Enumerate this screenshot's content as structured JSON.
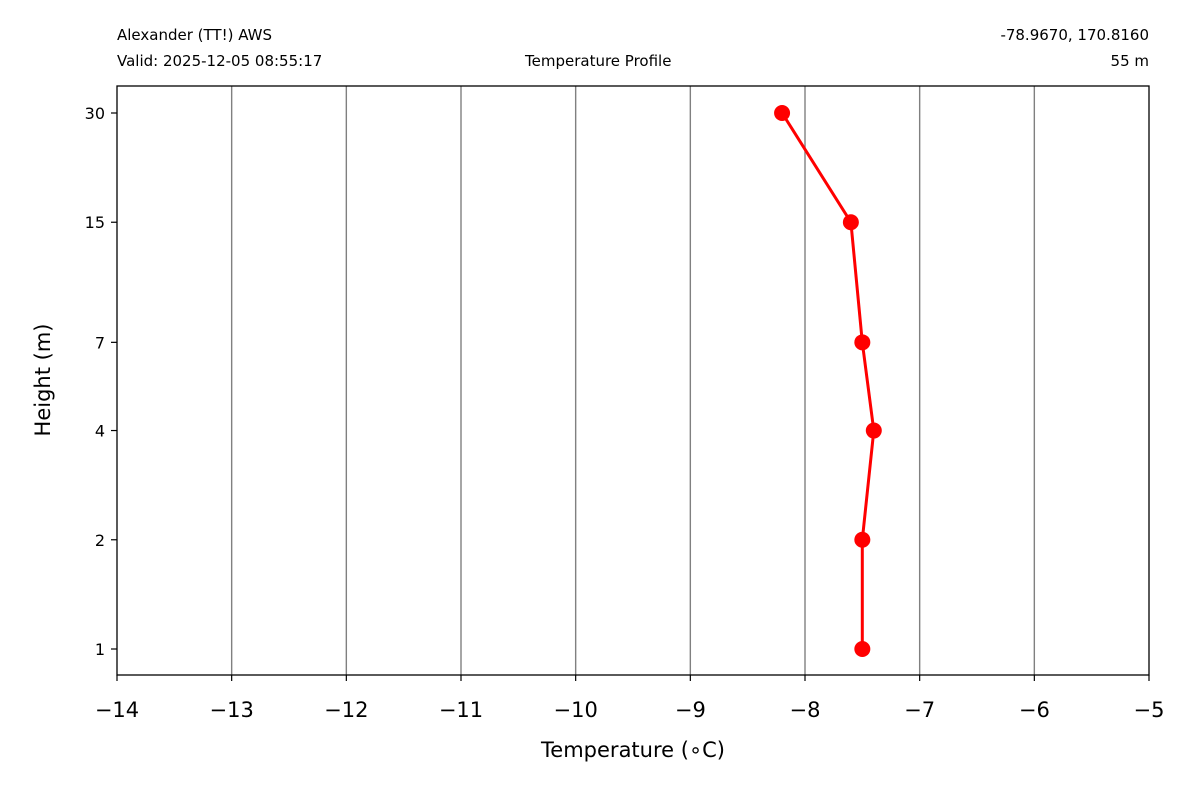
{
  "header": {
    "station": "Alexander (TT!) AWS",
    "valid": "Valid: 2025-12-05 08:55:17",
    "title": "Temperature Profile",
    "coords": "-78.9670, 170.8160",
    "elevation": "55 m"
  },
  "chart_data": {
    "type": "line",
    "xlabel": "Temperature (∘C)",
    "ylabel": "Height (m)",
    "xlim": [
      -14,
      -5
    ],
    "x_ticks": [
      -14,
      -13,
      -12,
      -11,
      -10,
      -9,
      -8,
      -7,
      -6,
      -5
    ],
    "x_tick_labels": [
      "−14",
      "−13",
      "−12",
      "−11",
      "−10",
      "−9",
      "−8",
      "−7",
      "−6",
      "−5"
    ],
    "y_ticks": [
      1,
      2,
      4,
      7,
      15,
      30
    ],
    "y_tick_labels": [
      "1",
      "2",
      "4",
      "7",
      "15",
      "30"
    ],
    "grid": "vertical",
    "series": [
      {
        "color": "#ff0000",
        "marker": "circle",
        "heights": [
          1,
          2,
          4,
          7,
          15,
          30
        ],
        "temperatures": [
          -7.5,
          -7.5,
          -7.4,
          -7.5,
          -7.6,
          -8.2
        ]
      }
    ]
  }
}
